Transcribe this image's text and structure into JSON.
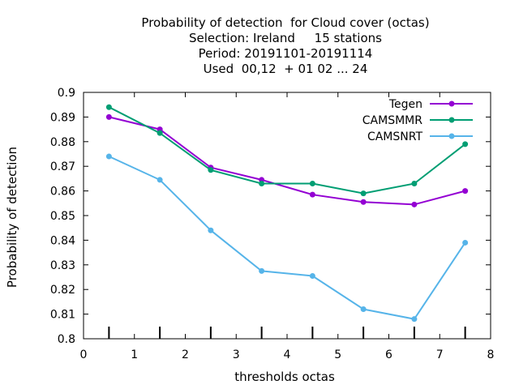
{
  "chart_data": {
    "type": "line",
    "title_lines": [
      "Probability of detection  for Cloud cover (octas)",
      "Selection: Ireland     15 stations",
      "Period: 20191101-20191114",
      "Used  00,12  + 01 02 ... 24"
    ],
    "xlabel": "thresholds octas",
    "ylabel": "Probability of detection",
    "xlim": [
      0,
      8
    ],
    "ylim": [
      0.8,
      0.9
    ],
    "xticks": [
      0,
      1,
      2,
      3,
      4,
      5,
      6,
      7,
      8
    ],
    "yticks": [
      0.8,
      0.81,
      0.82,
      0.83,
      0.84,
      0.85,
      0.86,
      0.87,
      0.88,
      0.89,
      0.9
    ],
    "ytick_labels": [
      "0.8",
      "0.81",
      "0.82",
      "0.83",
      "0.84",
      "0.85",
      "0.86",
      "0.87",
      "0.88",
      "0.89",
      "0.9"
    ],
    "x": [
      0.5,
      1.5,
      2.5,
      3.5,
      4.5,
      5.5,
      6.5,
      7.5
    ],
    "legend_position": "top-right",
    "grid": false,
    "series": [
      {
        "name": "Tegen",
        "color": "#9400d3",
        "values": [
          0.89,
          0.885,
          0.8695,
          0.8645,
          0.8585,
          0.8555,
          0.8545,
          0.86
        ]
      },
      {
        "name": "CAMSMMR",
        "color": "#009e73",
        "values": [
          0.894,
          0.8835,
          0.8685,
          0.863,
          0.863,
          0.859,
          0.863,
          0.879
        ]
      },
      {
        "name": "CAMSNRT",
        "color": "#56b4e9",
        "values": [
          0.874,
          0.8645,
          0.844,
          0.8275,
          0.8255,
          0.812,
          0.808,
          0.839
        ]
      }
    ]
  }
}
